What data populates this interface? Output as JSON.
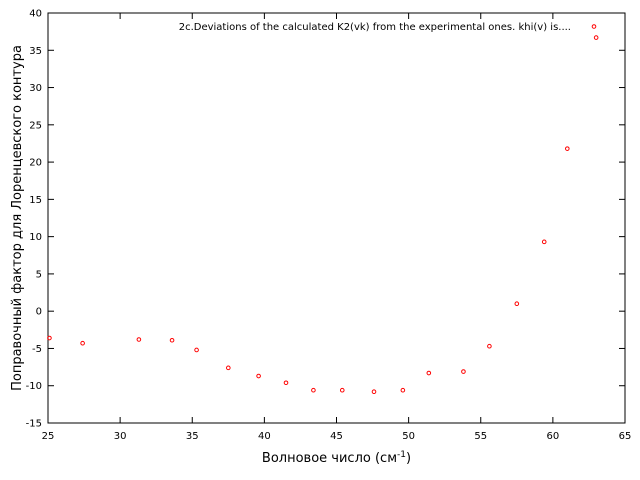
{
  "chart_data": {
    "type": "scatter",
    "xlabel": "Волновое число (см",
    "xlabel_sup": "-1",
    "xlabel_suffix": ")",
    "ylabel": "Поправочный фактор для Лоренцевского контура",
    "xlim": [
      25,
      65
    ],
    "ylim": [
      -15,
      40
    ],
    "xticks": [
      25,
      30,
      35,
      40,
      45,
      50,
      55,
      60,
      65
    ],
    "yticks": [
      -15,
      -10,
      -5,
      0,
      5,
      10,
      15,
      20,
      25,
      30,
      35,
      40
    ],
    "grid": false,
    "legend_position": "top-right",
    "marker_color": "#ff0000",
    "series": [
      {
        "name": "2c.Deviations of the calculated K2(vk) from the experimental ones. khi(v) is....",
        "x": [
          25.1,
          27.4,
          31.3,
          33.6,
          35.3,
          37.5,
          39.6,
          41.5,
          43.4,
          45.4,
          47.6,
          49.6,
          51.4,
          53.8,
          55.6,
          57.5,
          59.4,
          61.0,
          63.0
        ],
        "y": [
          -3.6,
          -4.3,
          -3.8,
          -3.9,
          -5.2,
          -7.6,
          -8.7,
          -9.6,
          -10.6,
          -10.6,
          -10.8,
          -10.6,
          -8.3,
          -8.1,
          -4.7,
          1.0,
          9.3,
          21.8,
          36.7
        ]
      }
    ]
  }
}
